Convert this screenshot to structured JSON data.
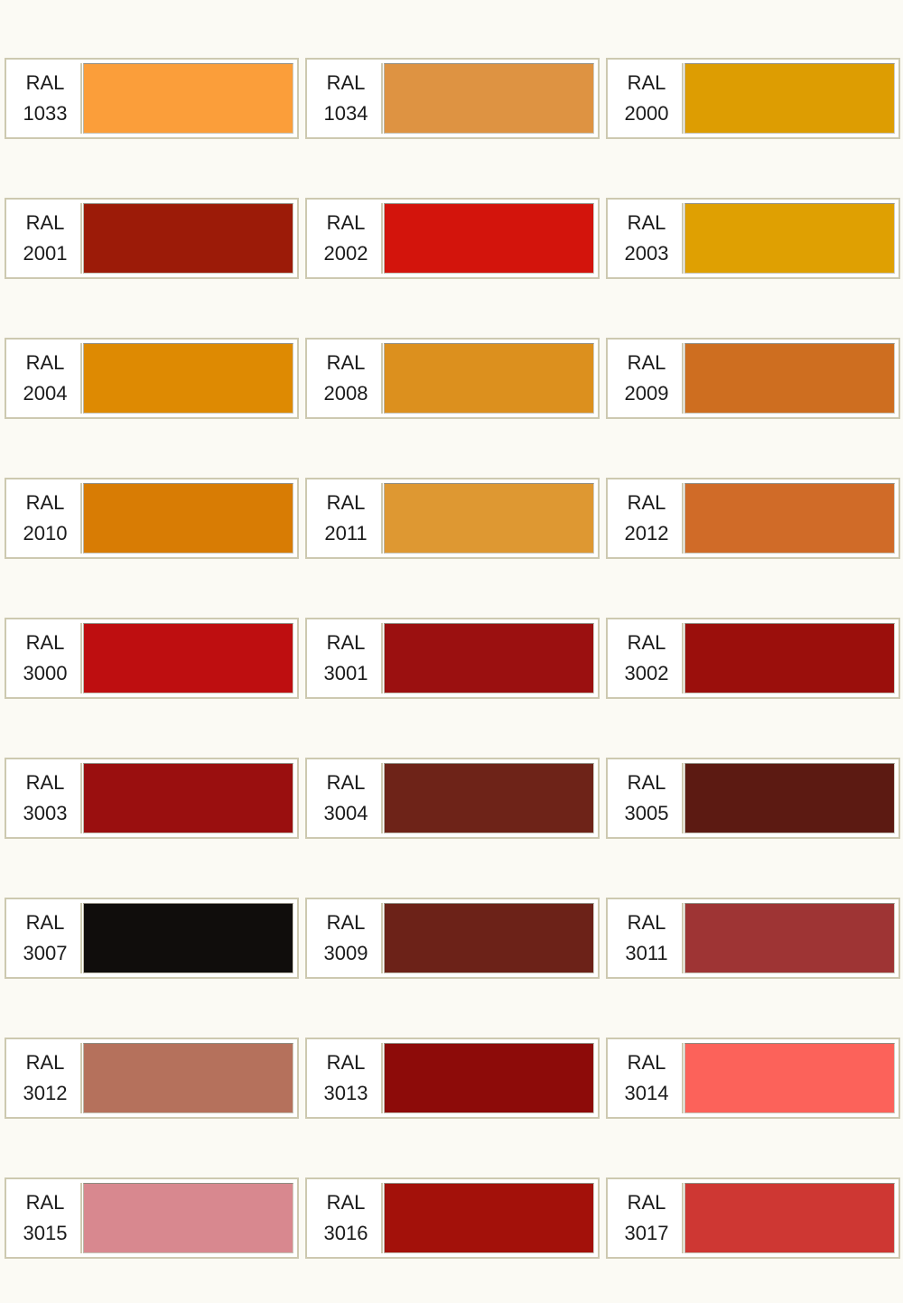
{
  "page": {
    "background_color": "#fbfaf4",
    "card_border_color": "#cdc9b0",
    "label_prefix": "RAL"
  },
  "swatches": [
    {
      "code": "1033",
      "color": "#fb9e3a"
    },
    {
      "code": "1034",
      "color": "#de9342"
    },
    {
      "code": "2000",
      "color": "#dd9d02"
    },
    {
      "code": "2001",
      "color": "#9c1b08"
    },
    {
      "code": "2002",
      "color": "#d3140c"
    },
    {
      "code": "2003",
      "color": "#dfa002"
    },
    {
      "code": "2004",
      "color": "#de8a02"
    },
    {
      "code": "2008",
      "color": "#dc901e"
    },
    {
      "code": "2009",
      "color": "#ce6e20"
    },
    {
      "code": "2010",
      "color": "#d87c04"
    },
    {
      "code": "2011",
      "color": "#de9832"
    },
    {
      "code": "2012",
      "color": "#d06b28"
    },
    {
      "code": "3000",
      "color": "#be0e10"
    },
    {
      "code": "3001",
      "color": "#9b1010"
    },
    {
      "code": "3002",
      "color": "#9b0f0c"
    },
    {
      "code": "3003",
      "color": "#9a0f0f"
    },
    {
      "code": "3004",
      "color": "#6e2318"
    },
    {
      "code": "3005",
      "color": "#5c1a12"
    },
    {
      "code": "3007",
      "color": "#100d0c"
    },
    {
      "code": "3009",
      "color": "#6c2218"
    },
    {
      "code": "3011",
      "color": "#9e3434"
    },
    {
      "code": "3012",
      "color": "#b5715c"
    },
    {
      "code": "3013",
      "color": "#8d0b09"
    },
    {
      "code": "3014",
      "color": "#fc625a"
    },
    {
      "code": "3015",
      "color": "#d8888f"
    },
    {
      "code": "3016",
      "color": "#a3110a"
    },
    {
      "code": "3017",
      "color": "#ce3733"
    }
  ]
}
